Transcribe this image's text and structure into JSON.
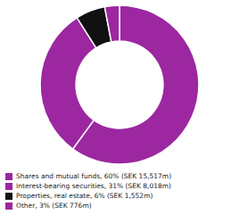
{
  "chart_data": {
    "type": "pie",
    "categories": [
      "Shares and mutual funds, 60% (SEK 15,517m)",
      "Interest-bearing securities, 31% (SEK 8,018m)",
      "Properties, real estate, 6% (SEK 1,552m)",
      "Other, 3% (SEK 776m)"
    ],
    "values": [
      60,
      31,
      6,
      3
    ],
    "colors": [
      "#9C27A0",
      "#9C27A0",
      "#111111",
      "#9C27A0"
    ],
    "legend": "lower left"
  }
}
